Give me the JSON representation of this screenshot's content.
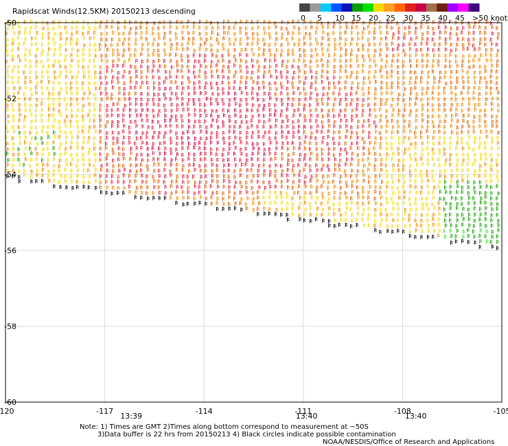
{
  "title": "Rapidscat Winds(12.5KM) 20150213 descending",
  "legend": {
    "labels": [
      "0",
      "5",
      "10",
      "15",
      "20",
      "25",
      "30",
      "35",
      "40",
      "45",
      ">50 knots"
    ],
    "colors": [
      "#444444",
      "#9a9a9a",
      "#00ccff",
      "#0055ff",
      "#1010c0",
      "#0aa000",
      "#00e000",
      "#f5d800",
      "#ffa020",
      "#ff6600",
      "#e02020",
      "#cc0044",
      "#a07050",
      "#702010",
      "#a000ff",
      "#ff00ff",
      "#400080"
    ]
  },
  "axes": {
    "lat_labels": [
      "-50",
      "-52",
      "-54",
      "-56",
      "-58",
      "-60"
    ],
    "lon_labels": [
      "-120",
      "-117",
      "-114",
      "-111",
      "-108",
      "-105"
    ],
    "lon_values": [
      -120,
      -117,
      -114,
      -111,
      -108,
      -105
    ],
    "lat_values": [
      -50,
      -52,
      -54,
      -56,
      -58,
      -60
    ]
  },
  "times": [
    {
      "text": "13:39",
      "lon": -116.2
    },
    {
      "text": "13:40",
      "lon": -110.9
    },
    {
      "text": "13:40",
      "lon": -107.6
    }
  ],
  "footer": {
    "note1": "Note: 1) Times are GMT 2)Times along bottom correspond to measurement at ~50S",
    "note2": "3)Data buffer is 22 hrs from 20150213 4) Black circles indicate possible contamination",
    "credit": "NOAA/NESDIS/Office of Research and Applications"
  },
  "colors": {
    "grid": "#dcdcdc",
    "frame": "#000000",
    "time_text": "#6a0a6a"
  },
  "wind_speed_palette": {
    "yellow": "#f5d800",
    "orange": "#f08a00",
    "dark_orange": "#e06000",
    "red": "#e0203c",
    "crimson": "#cc0044",
    "green": "#16a000",
    "light_green": "#40e040",
    "black": "#000000"
  }
}
